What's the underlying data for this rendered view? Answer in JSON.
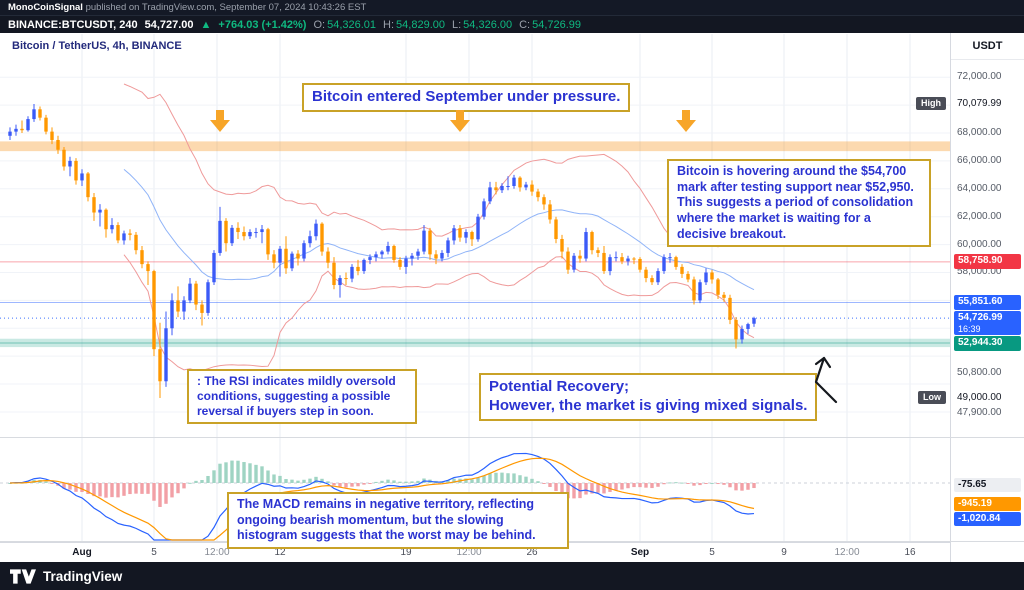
{
  "publish_bar": {
    "author": "MonoCoinSignal",
    "info": " published on TradingView.com, September 07, 2024 10:43:26 EST"
  },
  "symbol_bar": {
    "symbol": "BINANCE:BTCUSDT, 240",
    "last": "54,727.00",
    "direction_arrow": "▲",
    "change": "+764.03 (+1.42%)",
    "ohlc": {
      "o": {
        "label": "O:",
        "value": "54,326.01"
      },
      "h": {
        "label": "H:",
        "value": "54,829.00"
      },
      "l": {
        "label": "L:",
        "value": "54,326.00"
      },
      "c": {
        "label": "C:",
        "value": "54,726.99"
      }
    }
  },
  "chart_header": {
    "title": "Bitcoin / TetherUS, 4h, BINANCE"
  },
  "axis": {
    "currency": "USDT"
  },
  "annotations": {
    "headline": "Bitcoin entered September under pressure.",
    "consolidation": "Bitcoin is hovering around the $54,700 mark after testing support near $52,950. This suggests a period of consolidation where the market is waiting for a decisive breakout.",
    "rsi": ": The RSI indicates mildly oversold conditions, suggesting a possible reversal if buyers step in soon.",
    "recovery_line1": "Potential Recovery;",
    "recovery_line2": "However, the market is giving mixed signals.",
    "macd": "The MACD remains in negative territory, reflecting ongoing bearish momentum, but the slowing histogram suggests that the worst may be behind."
  },
  "footer": {
    "brand": "TradingView"
  },
  "chart_data": {
    "type": "candlestick",
    "symbol": "BINANCE:BTCUSDT",
    "interval": "4h",
    "title": "Bitcoin / TetherUS, 4h, BINANCE",
    "currency": "USDT",
    "price_ticks": [
      72000,
      68000,
      66000,
      64000,
      62000,
      60000,
      58000,
      50800,
      47900
    ],
    "high_marker": {
      "label": "High",
      "value": 70079.99,
      "display": "70,079.99"
    },
    "low_marker": {
      "label": "Low",
      "value": 49000,
      "display": "49,000.00"
    },
    "price_badges": [
      {
        "display": "58,758.90",
        "value": 58758.9,
        "color": "#f23645"
      },
      {
        "display": "55,851.60",
        "value": 55851.6,
        "color": "#2962ff"
      },
      {
        "display": "54,726.99",
        "value": 54726.99,
        "color": "#2962ff",
        "countdown": "16:39",
        "current": true
      },
      {
        "display": "52,944.30",
        "value": 52944.3,
        "color": "#089981"
      }
    ],
    "zones": [
      {
        "from": 66700,
        "to": 67400,
        "color": "rgba(247,147,26,0.35)"
      },
      {
        "from": 52650,
        "to": 53250,
        "color": "rgba(8,153,129,0.22)"
      }
    ],
    "x_ticks": [
      {
        "label": "Aug",
        "i": 12,
        "bold": true
      },
      {
        "label": "5",
        "i": 24
      },
      {
        "label": "12:00",
        "i": 34.5
      },
      {
        "label": "12",
        "i": 45
      },
      {
        "label": "19",
        "i": 66
      },
      {
        "label": "12:00",
        "i": 76.5
      },
      {
        "label": "26",
        "i": 87
      },
      {
        "label": "Sep",
        "i": 105,
        "bold": true
      },
      {
        "label": "5",
        "i": 117
      },
      {
        "label": "9",
        "i": 129
      },
      {
        "label": "12:00",
        "i": 139.5
      },
      {
        "label": "16",
        "i": 150
      }
    ],
    "candles": [
      [
        67800,
        68400,
        67500,
        68100
      ],
      [
        68100,
        68600,
        67800,
        68300
      ],
      [
        68300,
        68900,
        68000,
        68200
      ],
      [
        68200,
        69200,
        68100,
        69000
      ],
      [
        69000,
        70080,
        68800,
        69700
      ],
      [
        69700,
        69900,
        68900,
        69100
      ],
      [
        69100,
        69300,
        67900,
        68100
      ],
      [
        68100,
        68400,
        67200,
        67500
      ],
      [
        67500,
        67800,
        66500,
        66800
      ],
      [
        66800,
        67000,
        65300,
        65600
      ],
      [
        65600,
        66300,
        64900,
        66000
      ],
      [
        66000,
        66200,
        64300,
        64600
      ],
      [
        64600,
        65400,
        64200,
        65100
      ],
      [
        65100,
        65200,
        63100,
        63400
      ],
      [
        63400,
        63700,
        61700,
        62300
      ],
      [
        62300,
        62900,
        61300,
        62500
      ],
      [
        62500,
        62600,
        60500,
        61100
      ],
      [
        61100,
        61900,
        60800,
        61400
      ],
      [
        61400,
        61600,
        60100,
        60300
      ],
      [
        60300,
        61000,
        60000,
        60800
      ],
      [
        60800,
        61100,
        60300,
        60700
      ],
      [
        60700,
        60900,
        59300,
        59600
      ],
      [
        59600,
        59900,
        58300,
        58600
      ],
      [
        58600,
        58800,
        57100,
        58100
      ],
      [
        58100,
        58200,
        52000,
        52500
      ],
      [
        52500,
        54400,
        49000,
        50200
      ],
      [
        50200,
        55200,
        49800,
        54000
      ],
      [
        54000,
        56500,
        53500,
        56000
      ],
      [
        56000,
        57000,
        54800,
        55200
      ],
      [
        55200,
        56300,
        54600,
        56000
      ],
      [
        56000,
        57600,
        55800,
        57200
      ],
      [
        57200,
        57400,
        55300,
        55700
      ],
      [
        55700,
        56000,
        54200,
        55100
      ],
      [
        55100,
        57500,
        54900,
        57300
      ],
      [
        57300,
        59600,
        57100,
        59400
      ],
      [
        59400,
        62700,
        59200,
        61700
      ],
      [
        61700,
        61900,
        59500,
        60100
      ],
      [
        60100,
        61400,
        59900,
        61200
      ],
      [
        61200,
        61600,
        60400,
        60900
      ],
      [
        60900,
        61300,
        60300,
        60600
      ],
      [
        60600,
        61100,
        60400,
        60900
      ],
      [
        60900,
        61200,
        60500,
        60900
      ],
      [
        60900,
        61400,
        60100,
        61100
      ],
      [
        61100,
        61200,
        58900,
        59300
      ],
      [
        59300,
        59600,
        58300,
        58700
      ],
      [
        58700,
        59900,
        57700,
        59700
      ],
      [
        59700,
        60600,
        57900,
        58300
      ],
      [
        58300,
        59500,
        58100,
        59350
      ],
      [
        59350,
        59600,
        58500,
        59000
      ],
      [
        59000,
        60300,
        58800,
        60100
      ],
      [
        60100,
        61000,
        59800,
        60600
      ],
      [
        60600,
        61800,
        60300,
        61500
      ],
      [
        61500,
        61600,
        59200,
        59500
      ],
      [
        59500,
        59800,
        58300,
        58700
      ],
      [
        58700,
        59100,
        56800,
        57100
      ],
      [
        57100,
        57800,
        56200,
        57600
      ],
      [
        57600,
        58000,
        57100,
        57560
      ],
      [
        57560,
        58600,
        57300,
        58400
      ],
      [
        58400,
        58900,
        57800,
        58100
      ],
      [
        58100,
        59000,
        57900,
        58900
      ],
      [
        58900,
        59300,
        58600,
        59100
      ],
      [
        59100,
        59500,
        58800,
        59300
      ],
      [
        59300,
        59600,
        59000,
        59500
      ],
      [
        59500,
        60200,
        59300,
        59900
      ],
      [
        59900,
        60000,
        58700,
        58900
      ],
      [
        58900,
        59100,
        58200,
        58400
      ],
      [
        58400,
        59200,
        57900,
        59000
      ],
      [
        59000,
        59400,
        58500,
        59200
      ],
      [
        59200,
        59700,
        58900,
        59500
      ],
      [
        59500,
        61400,
        59300,
        61000
      ],
      [
        61000,
        61200,
        58900,
        59300
      ],
      [
        59300,
        59600,
        58600,
        59000
      ],
      [
        59000,
        59600,
        58800,
        59400
      ],
      [
        59400,
        60500,
        59100,
        60300
      ],
      [
        60300,
        61400,
        60000,
        61170
      ],
      [
        61170,
        61400,
        60200,
        60500
      ],
      [
        60500,
        61100,
        60100,
        60900
      ],
      [
        60900,
        61000,
        59900,
        60380
      ],
      [
        60380,
        62200,
        60200,
        62000
      ],
      [
        62000,
        63300,
        61800,
        63100
      ],
      [
        63100,
        64500,
        62900,
        64100
      ],
      [
        64100,
        64500,
        63600,
        63900
      ],
      [
        63900,
        64400,
        63700,
        64200
      ],
      [
        64200,
        64900,
        63900,
        64200
      ],
      [
        64200,
        65000,
        64000,
        64800
      ],
      [
        64800,
        64900,
        63800,
        64100
      ],
      [
        64100,
        64500,
        63900,
        64300
      ],
      [
        64300,
        64600,
        63500,
        63800
      ],
      [
        63800,
        64000,
        63100,
        63400
      ],
      [
        63400,
        63600,
        62500,
        62880
      ],
      [
        62880,
        63200,
        61500,
        61800
      ],
      [
        61800,
        62000,
        60100,
        60400
      ],
      [
        60400,
        60700,
        59000,
        59500
      ],
      [
        59500,
        59800,
        57900,
        58200
      ],
      [
        58200,
        59400,
        58000,
        59200
      ],
      [
        59200,
        59600,
        58700,
        59000
      ],
      [
        59000,
        61200,
        58800,
        60900
      ],
      [
        60900,
        61000,
        59300,
        59600
      ],
      [
        59600,
        59800,
        59100,
        59400
      ],
      [
        59400,
        59900,
        57900,
        58100
      ],
      [
        58100,
        59300,
        57800,
        59100
      ],
      [
        59100,
        59500,
        58800,
        59100
      ],
      [
        59100,
        59400,
        58600,
        58800
      ],
      [
        58800,
        59200,
        58500,
        59000
      ],
      [
        59000,
        59100,
        58600,
        58970
      ],
      [
        58970,
        59100,
        58000,
        58200
      ],
      [
        58200,
        58400,
        57300,
        57600
      ],
      [
        57600,
        57800,
        57100,
        57300
      ],
      [
        57300,
        58300,
        57100,
        58100
      ],
      [
        58100,
        59300,
        57900,
        59100
      ],
      [
        59100,
        59400,
        58700,
        59100
      ],
      [
        59100,
        59200,
        58200,
        58400
      ],
      [
        58400,
        58600,
        57600,
        57900
      ],
      [
        57900,
        58100,
        57300,
        57500
      ],
      [
        57500,
        57700,
        55700,
        56000
      ],
      [
        56000,
        57500,
        55800,
        57300
      ],
      [
        57300,
        58300,
        57100,
        58000
      ],
      [
        58000,
        58200,
        57200,
        57500
      ],
      [
        57500,
        57600,
        56100,
        56400
      ],
      [
        56400,
        56600,
        55900,
        56180
      ],
      [
        56180,
        56400,
        54300,
        54600
      ],
      [
        54600,
        54800,
        52550,
        53200
      ],
      [
        53200,
        54200,
        52900,
        53950
      ],
      [
        53950,
        54400,
        53600,
        54300
      ],
      [
        54326,
        54829,
        54100,
        54727
      ]
    ],
    "indicators": {
      "bollinger": {
        "length": 20,
        "mult": 2
      },
      "macd": {
        "fast": 12,
        "slow": 26,
        "signal": 9
      }
    },
    "macd_badges": [
      {
        "display": "-75.65",
        "value": -75.65,
        "color": "#eceef2",
        "text": "#131722"
      },
      {
        "display": "-945.19",
        "value": -945.19,
        "color": "#ff9800",
        "text": "#ffffff"
      },
      {
        "display": "-1,020.84",
        "value": -1020.84,
        "color": "#2962ff",
        "text": "#ffffff"
      }
    ],
    "colors": {
      "up": "#3b5af7",
      "down": "#ff9800"
    }
  }
}
